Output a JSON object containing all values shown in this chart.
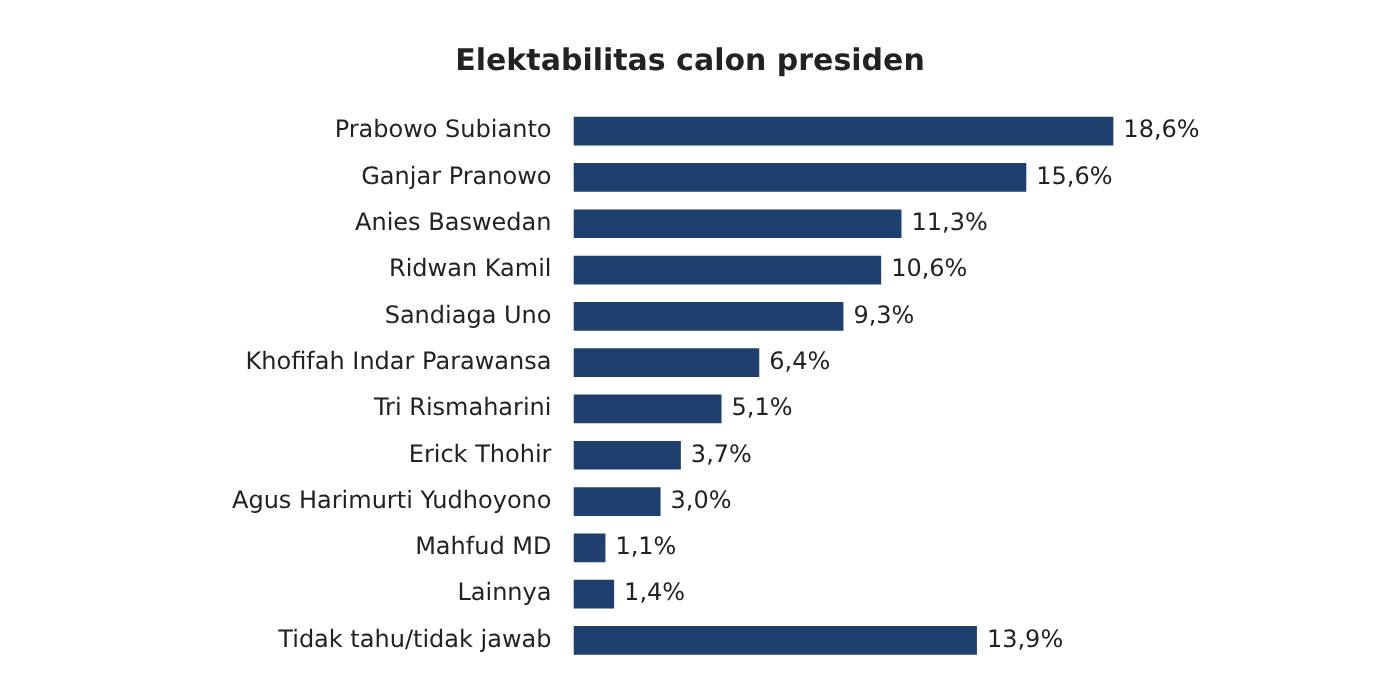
{
  "chart_data": {
    "type": "bar",
    "orientation": "horizontal",
    "title": "Elektabilitas calon presiden",
    "categories": [
      "Prabowo Subianto",
      "Ganjar Pranowo",
      "Anies Baswedan",
      "Ridwan Kamil",
      "Sandiaga Uno",
      "Khofifah Indar Parawansa",
      "Tri Rismaharini",
      "Erick Thohir",
      "Agus Harimurti Yudhoyono",
      "Mahfud MD",
      "Lainnya",
      "Tidak tahu/tidak jawab"
    ],
    "values": [
      18.6,
      15.6,
      11.3,
      10.6,
      9.3,
      6.4,
      5.1,
      3.7,
      3.0,
      1.1,
      1.4,
      13.9
    ],
    "value_labels": [
      "18,6%",
      "15,6%",
      "11,3%",
      "10,6%",
      "9,3%",
      "6,4%",
      "5,1%",
      "3,7%",
      "3,0%",
      "1,1%",
      "1,4%",
      "13,9%"
    ],
    "color": "#1f3f6e",
    "legend": false
  }
}
